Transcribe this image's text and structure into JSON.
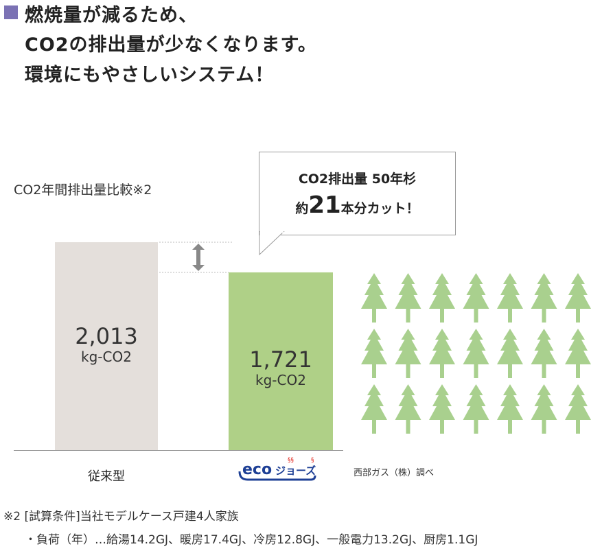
{
  "headline": [
    "燃焼量が減るため、",
    "CO2の排出量が少なくなります。",
    "環境にもやさしいシステム！"
  ],
  "bubble": {
    "line1": "CO2排出量 50年杉",
    "line2_pre": "約",
    "line2_num": "21",
    "line2_post": "本分カット！"
  },
  "chart_data": {
    "type": "bar",
    "title": "CO2年間排出量比較※2",
    "categories": [
      "従来型",
      "エコジョーズ"
    ],
    "values": [
      2013,
      1721
    ],
    "value_labels": [
      "2,013",
      "1,721"
    ],
    "unit": "kg-CO2",
    "colors": [
      "#e4dfdb",
      "#afd087"
    ],
    "tree_count": 21,
    "tree_color": "#a9d08e"
  },
  "logo_text": "ecoジョーズ",
  "source": "西部ガス（株）調べ",
  "notes": [
    "※2  [試算条件]当社モデルケース戸建4人家族",
    "・負荷（年）…給湯14.2GJ、暖房17.4GJ、冷房12.8GJ、一般電力13.2GJ、厨房1.1GJ"
  ],
  "colors": {
    "marker": "#7b72b4",
    "logo": "#1d3f95"
  }
}
